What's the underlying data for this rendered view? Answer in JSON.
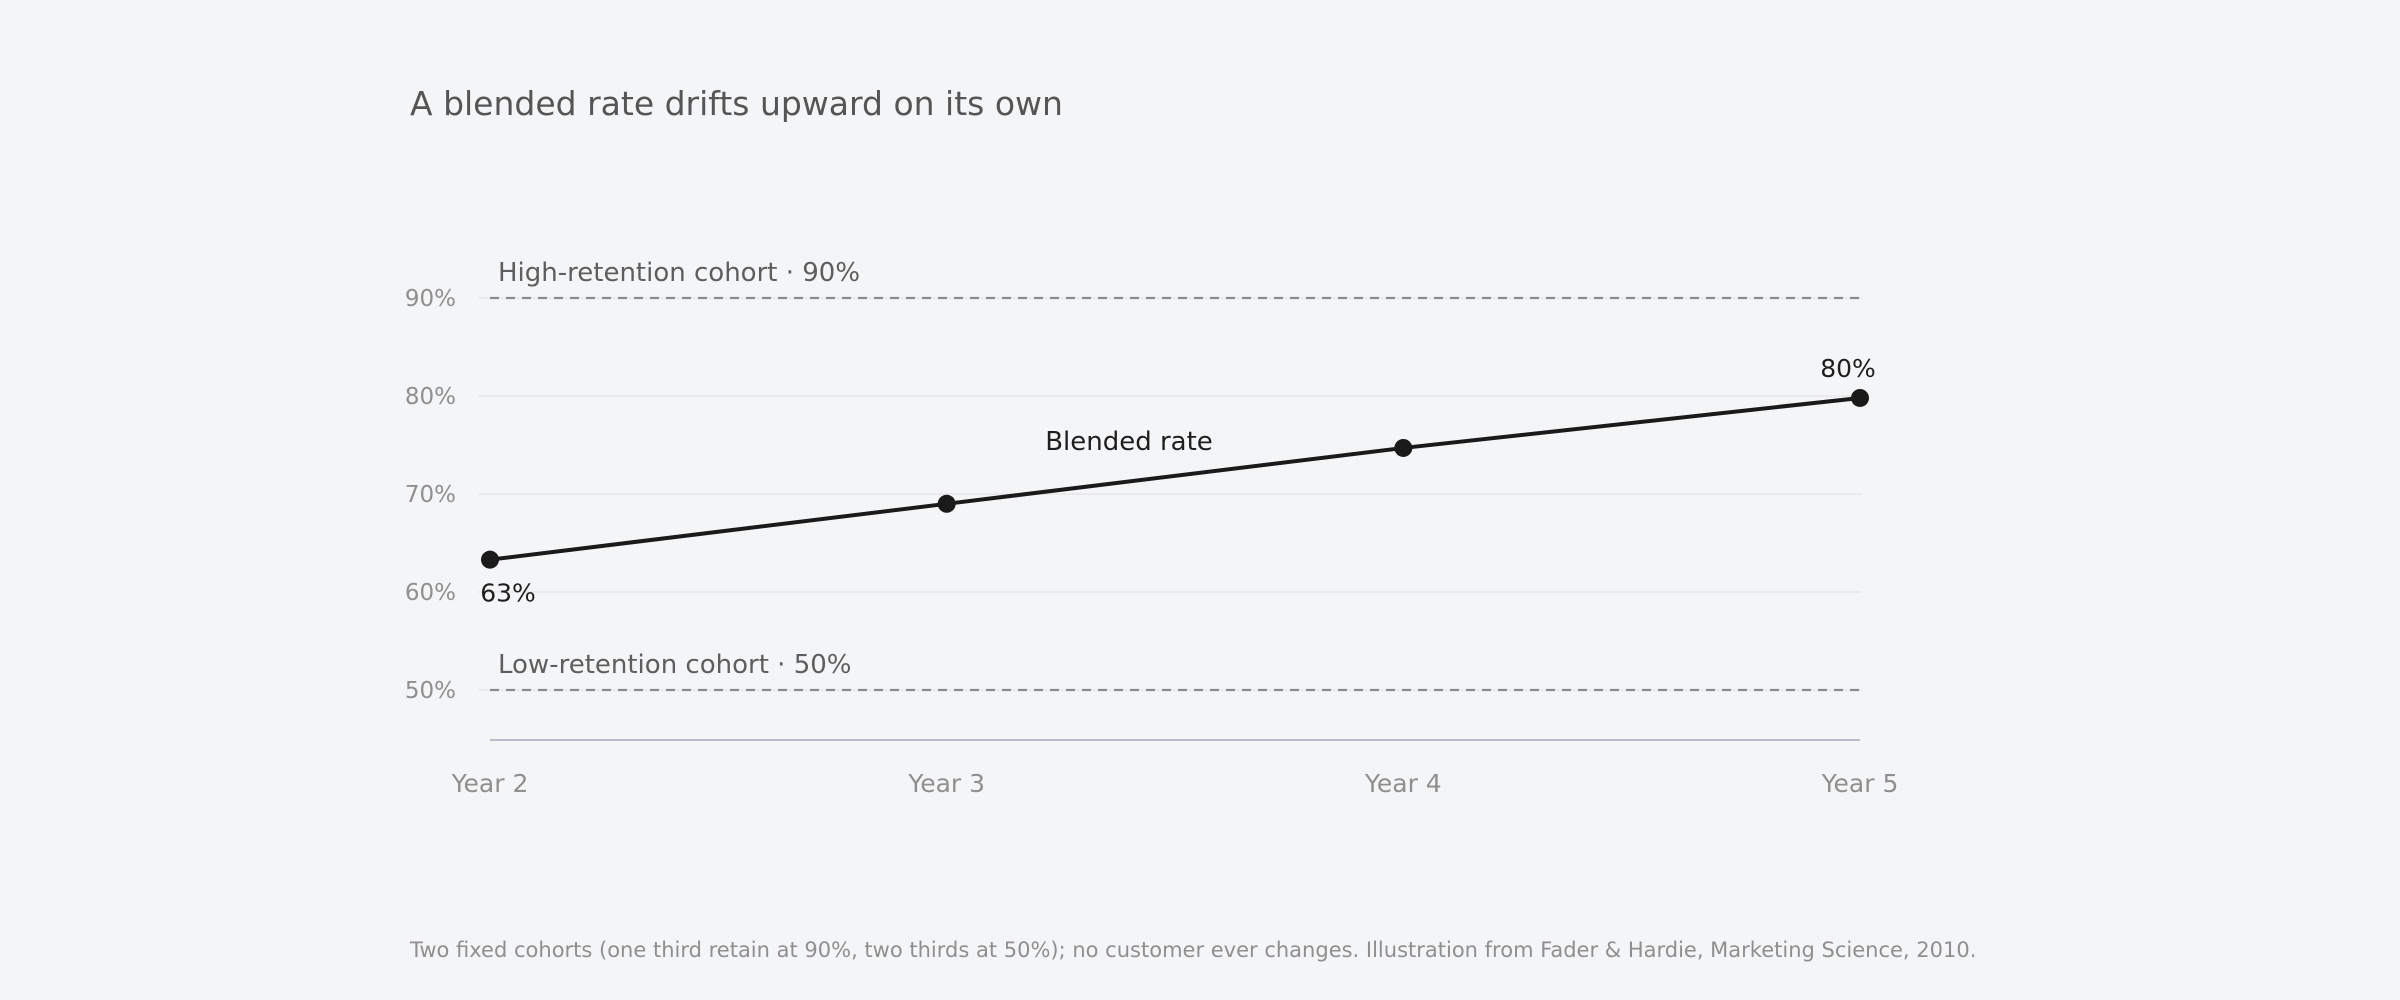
{
  "header": {
    "title": "A blended rate drifts upward on its own"
  },
  "footnote": "Two fixed cohorts (one third retain at 90%, two thirds at 50%); no customer ever changes. Illustration from Fader & Hardie, Marketing Science, 2010.",
  "colors": {
    "line": "#1a1a1a",
    "reference": "#8a8a8a",
    "grid": "#e6e7ea",
    "axis": "#b9bcc6",
    "tick_text": "#8f8f8f"
  },
  "chart_data": {
    "type": "line",
    "categories": [
      "Year 2",
      "Year 3",
      "Year 4",
      "Year 5"
    ],
    "series": [
      {
        "name": "Blended rate",
        "values": [
          63.3,
          69.0,
          74.7,
          79.8
        ]
      }
    ],
    "data_labels": {
      "first": "63%",
      "last": "80%"
    },
    "reference_lines": [
      {
        "label": "High-retention cohort · 90%",
        "value": 90
      },
      {
        "label": "Low-retention cohort · 50%",
        "value": 50
      }
    ],
    "y_ticks": [
      50,
      60,
      70,
      80,
      90
    ],
    "y_tick_labels": [
      "50%",
      "60%",
      "70%",
      "80%",
      "90%"
    ],
    "ylim": [
      45,
      95
    ],
    "grid": true,
    "legend": "none"
  }
}
